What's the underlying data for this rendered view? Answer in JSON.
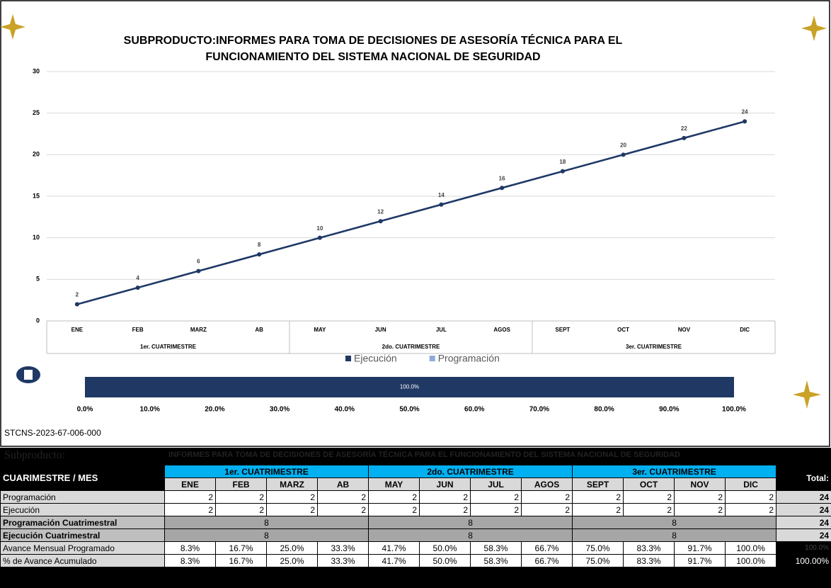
{
  "chart_data": [
    {
      "type": "line",
      "title": "SUBPRODUCTO:INFORMES PARA TOMA DE DECISIONES DE ASESORÍA TÉCNICA PARA EL",
      "subtitle": "FUNCIONAMIENTO DEL SISTEMA NACIONAL DE SEGURIDAD",
      "categories": [
        "ENE",
        "FEB",
        "MARZ",
        "AB",
        "MAY",
        "JUN",
        "JUL",
        "AGOS",
        "SEPT",
        "OCT",
        "NOV",
        "DIC"
      ],
      "category_groups": [
        "1er. CUATRIMESTRE",
        "2do. CUATRIMESTRE",
        "3er. CUATRIMESTRE"
      ],
      "series": [
        {
          "name": "Ejecución",
          "color": "#1f3864",
          "values": [
            2,
            4,
            6,
            8,
            10,
            12,
            14,
            16,
            18,
            20,
            22,
            24
          ]
        },
        {
          "name": "Programación",
          "color": "#8eaadb",
          "values": [
            2,
            4,
            6,
            8,
            10,
            12,
            14,
            16,
            18,
            20,
            22,
            24
          ]
        }
      ],
      "ylim": [
        0,
        30
      ],
      "yticks": [
        0,
        5,
        10,
        15,
        20,
        25,
        30
      ],
      "grid": true,
      "legend": "bottom"
    },
    {
      "type": "hbar",
      "values": [
        100
      ],
      "value_labels": [
        "100.0%"
      ],
      "color": "#1f3864",
      "xlim": [
        0,
        100
      ],
      "xticks": [
        {
          "value": 0,
          "label": "0.0%"
        },
        {
          "value": 10,
          "label": "10.0%"
        },
        {
          "value": 20,
          "label": "20.0%"
        },
        {
          "value": 30,
          "label": "30.0%"
        },
        {
          "value": 40,
          "label": "40.0%"
        },
        {
          "value": 50,
          "label": "50.0%"
        },
        {
          "value": 60,
          "label": "60.0%"
        },
        {
          "value": 70,
          "label": "70.0%"
        },
        {
          "value": 80,
          "label": "80.0%"
        },
        {
          "value": 90,
          "label": "90.0%"
        },
        {
          "value": 100,
          "label": "100.0%"
        }
      ]
    }
  ],
  "document_id": "STCNS-2023-67-006-000",
  "table": {
    "subproduct_label": "Subproducto:",
    "subproduct_title": "INFORMES PARA TOMA DE DECISIONES DE ASESORÍA TÉCNICA PARA EL FUNCIONAMIENTO DEL SISTEMA NACIONAL DE SEGURIDAD",
    "corner": "CUARIMESTRE / MES",
    "total_header": "Total:",
    "quarters": [
      "1er. CUATRIMESTRE",
      "2do. CUATRIMESTRE",
      "3er. CUATRIMESTRE"
    ],
    "months": [
      "ENE",
      "FEB",
      "MARZ",
      "AB",
      "MAY",
      "JUN",
      "JUL",
      "AGOS",
      "SEPT",
      "OCT",
      "NOV",
      "DIC"
    ],
    "rows": [
      {
        "label": "Programación",
        "cells": [
          2,
          2,
          2,
          2,
          2,
          2,
          2,
          2,
          2,
          2,
          2,
          2
        ],
        "total": 24
      },
      {
        "label": "Ejecución",
        "cells": [
          2,
          2,
          2,
          2,
          2,
          2,
          2,
          2,
          2,
          2,
          2,
          2
        ],
        "total": 24
      },
      {
        "label": "Programación Cuatrimestral",
        "cells": [
          8,
          8,
          8
        ],
        "total": 24
      },
      {
        "label": "Ejecución Cuatrimestral",
        "cells": [
          8,
          8,
          8
        ],
        "total": 24
      },
      {
        "label": "Avance Mensual Programado",
        "cells": [
          "8.3%",
          "16.7%",
          "25.0%",
          "33.3%",
          "41.7%",
          "50.0%",
          "58.3%",
          "66.7%",
          "75.0%",
          "83.3%",
          "91.7%",
          "100.0%"
        ],
        "total": "100.0%"
      },
      {
        "label": "% de Avance Acumulado",
        "cells": [
          "8.3%",
          "16.7%",
          "25.0%",
          "33.3%",
          "41.7%",
          "50.0%",
          "58.3%",
          "66.7%",
          "75.0%",
          "83.3%",
          "91.7%",
          "100.0%"
        ],
        "total": "100.00%"
      }
    ]
  }
}
